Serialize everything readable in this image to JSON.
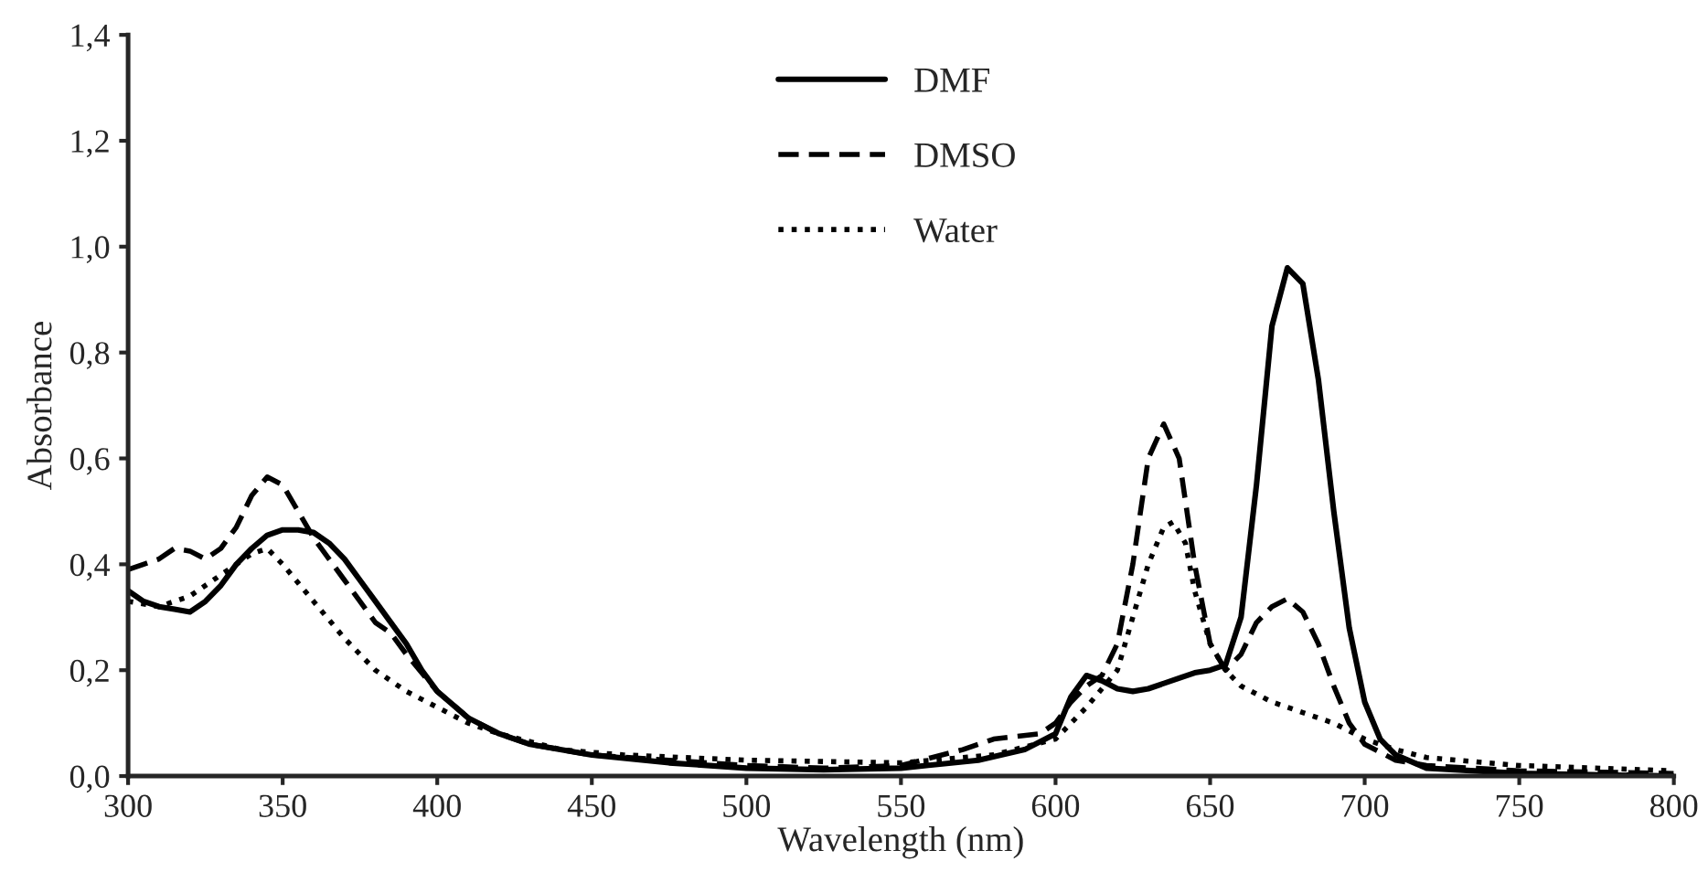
{
  "chart_data": {
    "type": "line",
    "xlabel": "Wavelength (nm)",
    "ylabel": "Absorbance",
    "legend": "top left",
    "grid": false,
    "marker": "none",
    "xlim": [
      300,
      800
    ],
    "xticks": [
      300,
      350,
      400,
      450,
      500,
      550,
      600,
      650,
      700,
      750,
      800
    ],
    "ylim": [
      0,
      1.4
    ],
    "yticks": [
      {
        "value": 0,
        "label": "0,0"
      },
      {
        "value": 0.2,
        "label": "0,2"
      },
      {
        "value": 0.4,
        "label": "0,4"
      },
      {
        "value": 0.6,
        "label": "0,6"
      },
      {
        "value": 0.8,
        "label": "0,8"
      },
      {
        "value": 1.0,
        "label": "1,0"
      },
      {
        "value": 1.2,
        "label": "1,2"
      },
      {
        "value": 1.4,
        "label": "1,4"
      }
    ],
    "series": [
      {
        "name": "DMF",
        "color": "#000000",
        "line_style": "solid",
        "x": [
          300,
          305,
          310,
          315,
          320,
          325,
          330,
          335,
          340,
          345,
          350,
          355,
          360,
          365,
          370,
          375,
          380,
          385,
          390,
          395,
          400,
          410,
          420,
          430,
          450,
          475,
          500,
          525,
          550,
          575,
          590,
          600,
          605,
          610,
          615,
          620,
          625,
          630,
          640,
          645,
          650,
          655,
          660,
          665,
          670,
          675,
          680,
          685,
          690,
          695,
          700,
          705,
          710,
          720,
          750,
          800
        ],
        "values": [
          0.35,
          0.33,
          0.32,
          0.315,
          0.31,
          0.33,
          0.36,
          0.4,
          0.43,
          0.455,
          0.465,
          0.465,
          0.46,
          0.44,
          0.41,
          0.37,
          0.33,
          0.29,
          0.25,
          0.2,
          0.16,
          0.11,
          0.08,
          0.06,
          0.04,
          0.025,
          0.015,
          0.012,
          0.015,
          0.03,
          0.05,
          0.08,
          0.15,
          0.19,
          0.18,
          0.165,
          0.16,
          0.165,
          0.185,
          0.195,
          0.2,
          0.21,
          0.3,
          0.55,
          0.85,
          0.96,
          0.93,
          0.75,
          0.5,
          0.28,
          0.14,
          0.07,
          0.04,
          0.015,
          0.005,
          0.0
        ]
      },
      {
        "name": "DMSO",
        "color": "#000000",
        "line_style": "dashed",
        "x": [
          300,
          305,
          310,
          315,
          320,
          325,
          330,
          335,
          340,
          345,
          350,
          355,
          360,
          365,
          370,
          375,
          380,
          385,
          390,
          400,
          410,
          420,
          430,
          450,
          475,
          500,
          525,
          550,
          570,
          580,
          595,
          600,
          605,
          610,
          615,
          620,
          625,
          630,
          635,
          640,
          645,
          650,
          655,
          660,
          665,
          670,
          675,
          680,
          685,
          690,
          695,
          700,
          710,
          720,
          750,
          800
        ],
        "values": [
          0.39,
          0.4,
          0.41,
          0.43,
          0.425,
          0.41,
          0.43,
          0.47,
          0.53,
          0.565,
          0.55,
          0.5,
          0.45,
          0.41,
          0.37,
          0.33,
          0.29,
          0.27,
          0.23,
          0.16,
          0.11,
          0.08,
          0.06,
          0.04,
          0.03,
          0.02,
          0.015,
          0.02,
          0.05,
          0.07,
          0.08,
          0.1,
          0.14,
          0.17,
          0.19,
          0.25,
          0.4,
          0.6,
          0.665,
          0.6,
          0.4,
          0.25,
          0.2,
          0.23,
          0.29,
          0.32,
          0.335,
          0.31,
          0.25,
          0.17,
          0.1,
          0.06,
          0.03,
          0.02,
          0.01,
          0.005
        ]
      },
      {
        "name": "Water",
        "color": "#000000",
        "line_style": "dotted",
        "x": [
          300,
          310,
          320,
          330,
          340,
          345,
          350,
          360,
          370,
          380,
          390,
          400,
          410,
          420,
          440,
          460,
          500,
          550,
          580,
          600,
          610,
          620,
          625,
          630,
          635,
          638,
          642,
          645,
          650,
          655,
          660,
          670,
          680,
          690,
          700,
          710,
          720,
          750,
          800
        ],
        "values": [
          0.33,
          0.32,
          0.34,
          0.38,
          0.42,
          0.43,
          0.4,
          0.33,
          0.26,
          0.2,
          0.16,
          0.13,
          0.1,
          0.08,
          0.05,
          0.04,
          0.03,
          0.025,
          0.04,
          0.07,
          0.13,
          0.2,
          0.3,
          0.4,
          0.47,
          0.48,
          0.44,
          0.35,
          0.25,
          0.2,
          0.17,
          0.14,
          0.12,
          0.1,
          0.07,
          0.05,
          0.035,
          0.02,
          0.01
        ]
      }
    ]
  }
}
